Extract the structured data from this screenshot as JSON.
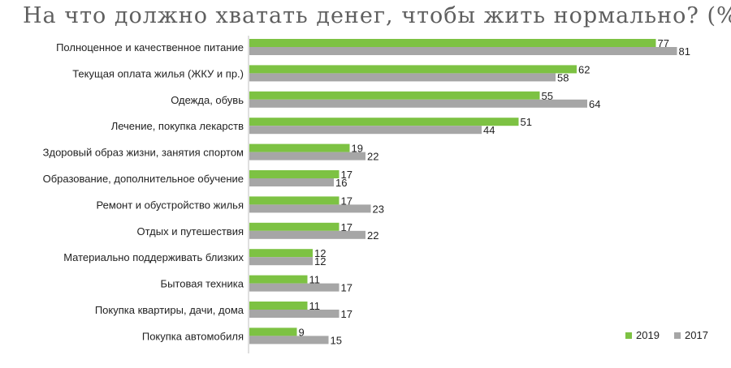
{
  "chart_data": {
    "type": "bar",
    "orientation": "horizontal",
    "title": "На что должно хватать денег, чтобы жить нормально? (%)",
    "categories": [
      "Полноценное и качественное питание",
      "Текущая оплата жилья (ЖКУ и пр.)",
      "Одежда, обувь",
      "Лечение, покупка лекарств",
      "Здоровый образ жизни, занятия спортом",
      "Образование, дополнительное обучение",
      "Ремонт и обустройство жилья",
      "Отдых и путешествия",
      "Материально поддерживать близких",
      "Бытовая техника",
      "Покупка квартиры, дачи, дома",
      "Покупка автомобиля"
    ],
    "series": [
      {
        "name": "2019",
        "color": "#7dc243",
        "values": [
          77,
          62,
          55,
          51,
          19,
          17,
          17,
          17,
          12,
          11,
          11,
          9
        ]
      },
      {
        "name": "2017",
        "color": "#a6a6a6",
        "values": [
          81,
          58,
          64,
          44,
          22,
          16,
          23,
          22,
          12,
          17,
          17,
          15
        ]
      }
    ],
    "xlim": [
      0,
      100
    ],
    "grid": false,
    "legend": "bottom-right"
  }
}
